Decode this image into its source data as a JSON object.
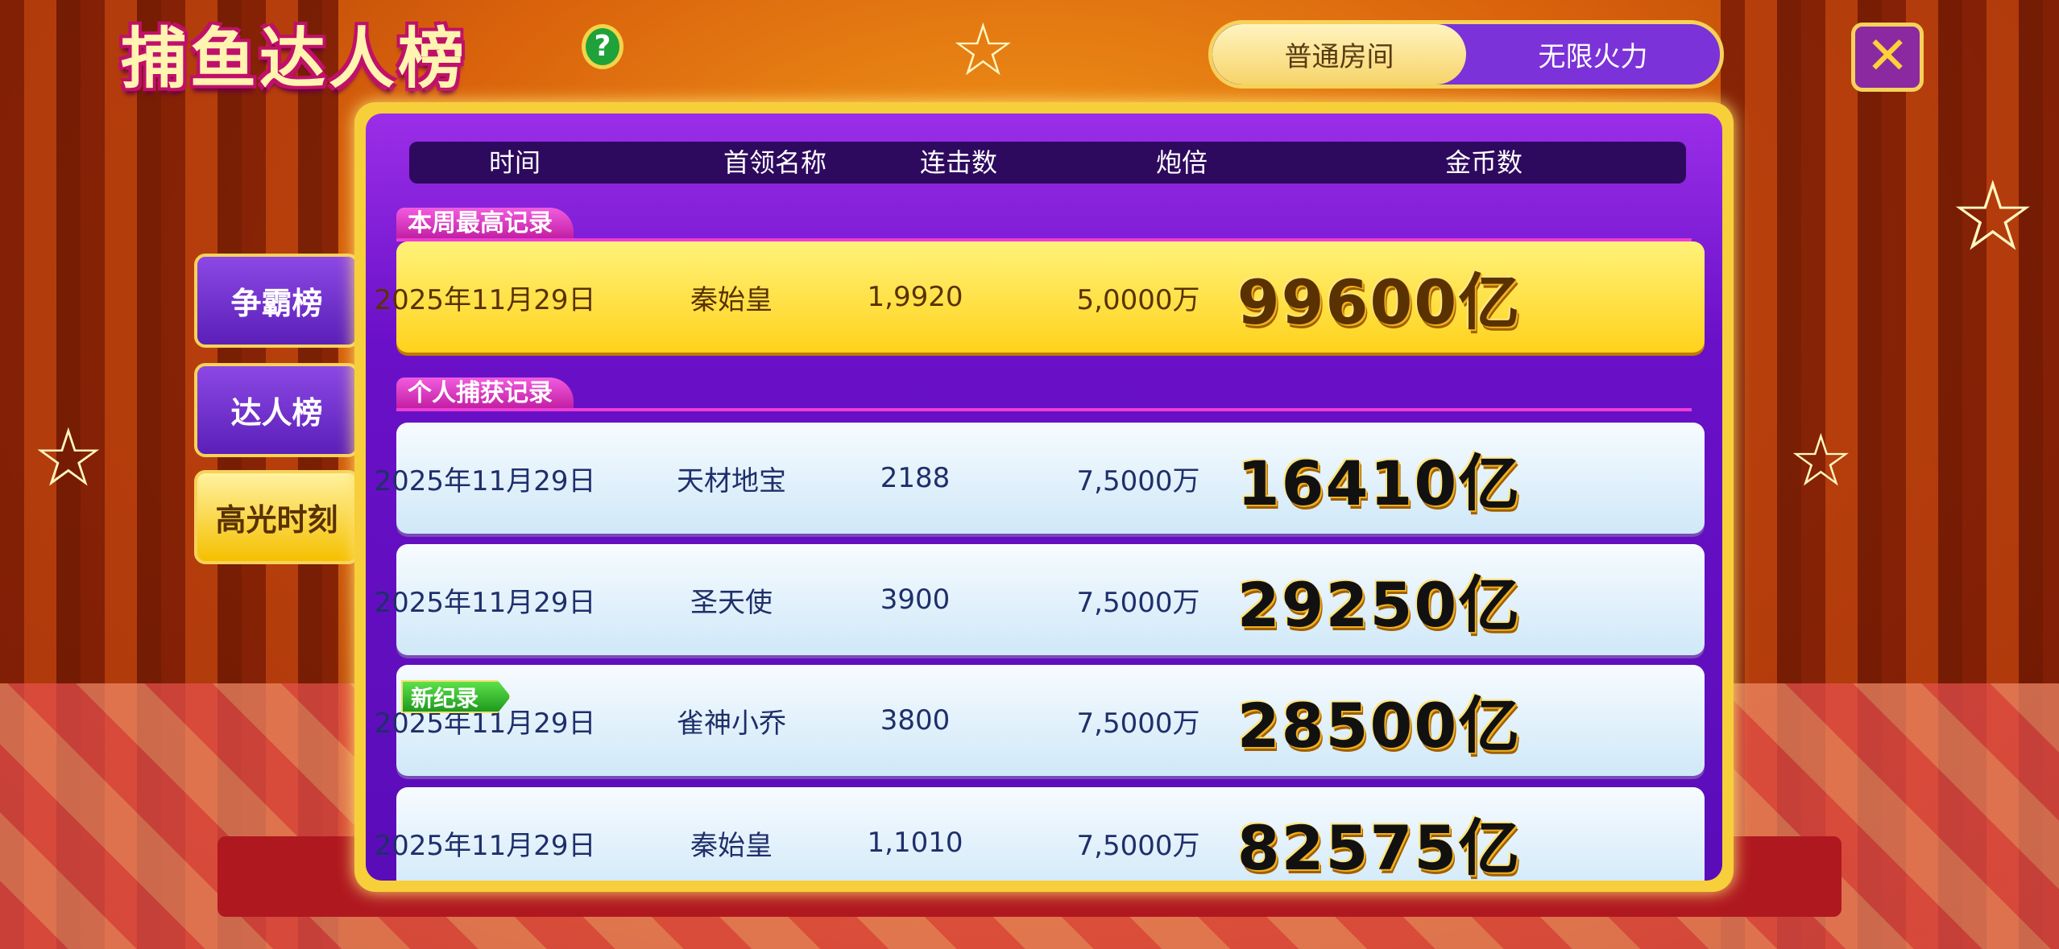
{
  "title": "捕鱼达人榜",
  "help_label": "?",
  "room_tabs": [
    {
      "label": "普通房间",
      "active": true
    },
    {
      "label": "无限火力",
      "active": false
    }
  ],
  "close_label": "✕",
  "side_tabs": [
    {
      "label": "争霸榜",
      "active": false
    },
    {
      "label": "达人榜",
      "active": false
    },
    {
      "label": "高光时刻",
      "active": true
    }
  ],
  "columns": [
    "时间",
    "首领名称",
    "连击数",
    "炮倍",
    "金币数"
  ],
  "weekly": {
    "label": "本周最高记录",
    "row": {
      "time": "2025年11月29日",
      "boss": "秦始皇",
      "combo": "1,9920",
      "multiplier": "5,0000万",
      "coins": "99600亿"
    }
  },
  "personal": {
    "label": "个人捕获记录",
    "new_record_badge": "新纪录",
    "rows": [
      {
        "time": "2025年11月29日",
        "boss": "天材地宝",
        "combo": "2188",
        "multiplier": "7,5000万",
        "coins": "16410亿"
      },
      {
        "time": "2025年11月29日",
        "boss": "圣天使",
        "combo": "3900",
        "multiplier": "7,5000万",
        "coins": "29250亿"
      },
      {
        "time": "2025年11月29日",
        "boss": "雀神小乔",
        "combo": "3800",
        "multiplier": "7,5000万",
        "coins": "28500亿"
      },
      {
        "time": "2025年11月29日",
        "boss": "秦始皇",
        "combo": "1,1010",
        "multiplier": "7,5000万",
        "coins": "82575亿"
      }
    ]
  }
}
